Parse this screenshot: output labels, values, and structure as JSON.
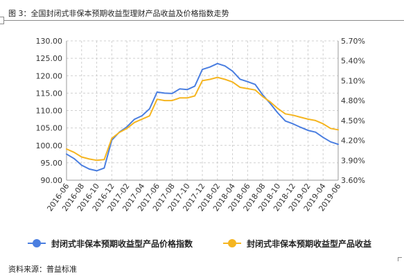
{
  "figure": {
    "title": "图 3：全国封闭式非保本预期收益型理财产品收益及价格指数走势",
    "source": "资料来源：普益标准"
  },
  "colors": {
    "index": "#4a7ee0",
    "yield": "#f5b520",
    "grid": "#cfcfcf",
    "axis": "#9a9a9a"
  },
  "chart_data": {
    "type": "line",
    "title": "",
    "xlabel": "",
    "ylabel": "",
    "x_tick_labels": [
      "2016-06",
      "2016-08",
      "2016-10",
      "2016-12",
      "2017-02",
      "2017-04",
      "2017-06",
      "2017-08",
      "2017-10",
      "2017-12",
      "2018-02",
      "2018-04",
      "2018-06",
      "2018-08",
      "2018-10",
      "2018-12",
      "2019-02",
      "2019-04",
      "2019-06"
    ],
    "x": [
      "2016-06",
      "2016-07",
      "2016-08",
      "2016-09",
      "2016-10",
      "2016-11",
      "2016-12",
      "2017-01",
      "2017-02",
      "2017-03",
      "2017-04",
      "2017-05",
      "2017-06",
      "2017-07",
      "2017-08",
      "2017-09",
      "2017-10",
      "2017-11",
      "2017-12",
      "2018-01",
      "2018-02",
      "2018-03",
      "2018-04",
      "2018-05",
      "2018-06",
      "2018-07",
      "2018-08",
      "2018-09",
      "2018-10",
      "2018-11",
      "2018-12",
      "2019-01",
      "2019-02",
      "2019-03",
      "2019-04",
      "2019-05",
      "2019-06"
    ],
    "y_left": {
      "min": 90,
      "max": 130,
      "step": 5,
      "tick_labels": [
        "90.00",
        "95.00",
        "100.00",
        "105.00",
        "110.00",
        "115.00",
        "120.00",
        "125.00",
        "130.00"
      ]
    },
    "y_right": {
      "min": 3.6,
      "max": 5.7,
      "step": 0.3,
      "tick_labels": [
        "3.60%",
        "3.90%",
        "4.20%",
        "4.50%",
        "4.80%",
        "5.10%",
        "5.40%",
        "5.70%"
      ]
    },
    "grid": true,
    "legend_position": "bottom",
    "series": [
      {
        "name": "封闭式非保本预期收益型产品价格指数",
        "axis": "left",
        "values": [
          97.5,
          96.2,
          94.3,
          93.2,
          92.7,
          93.5,
          101.5,
          103.8,
          105.3,
          107.5,
          108.5,
          110.5,
          115.3,
          115.0,
          114.9,
          116.2,
          116.0,
          117.0,
          121.8,
          122.5,
          123.5,
          122.8,
          121.3,
          119.0,
          118.3,
          117.5,
          114.5,
          112.0,
          109.3,
          107.0,
          106.2,
          105.2,
          104.3,
          103.8,
          102.3,
          101.0,
          100.3
        ]
      },
      {
        "name": "封闭式非保本预期收益型产品收益",
        "axis": "right",
        "values": [
          4.07,
          4.02,
          3.95,
          3.92,
          3.9,
          3.91,
          4.23,
          4.32,
          4.38,
          4.47,
          4.52,
          4.57,
          4.82,
          4.8,
          4.8,
          4.84,
          4.84,
          4.87,
          5.1,
          5.12,
          5.15,
          5.12,
          5.08,
          5.0,
          4.98,
          4.96,
          4.86,
          4.78,
          4.68,
          4.6,
          4.58,
          4.55,
          4.52,
          4.5,
          4.45,
          4.38,
          4.36
        ]
      }
    ]
  }
}
